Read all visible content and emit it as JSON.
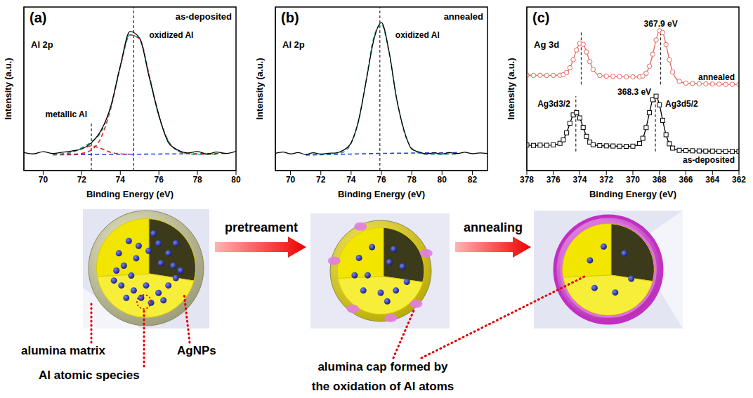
{
  "chart_data": [
    {
      "type": "line",
      "panel": "(a)",
      "title": "Al 2p",
      "subtitle": "as-deposited",
      "x_label": "Binding Energy (eV)",
      "y_label": "Intensity (a.u.)",
      "xlim": [
        69,
        80
      ],
      "xticks": [
        70,
        72,
        74,
        76,
        78,
        80
      ],
      "ylim": [
        0,
        100
      ],
      "tick_labels": "x",
      "x": [
        69,
        69.5,
        70,
        70.5,
        71,
        71.5,
        72,
        72.5,
        73,
        73.5,
        74,
        74.5,
        75,
        75.5,
        76,
        76.5,
        77,
        77.5,
        78,
        78.5,
        79,
        79.5,
        80
      ],
      "series": [
        {
          "color": "#2b3fd6",
          "line_style": "dashed",
          "values": [
            null,
            null,
            null,
            9.6,
            9.7,
            9.7,
            9.8,
            9.8,
            9.9,
            9.9,
            10,
            10,
            10,
            10.1,
            10.1,
            10.2,
            10.2,
            10.3,
            10.3,
            10.4,
            10.4,
            10.5,
            null
          ]
        },
        {
          "color": "#e8211d",
          "line_style": "dashed",
          "values": [
            null,
            null,
            null,
            10,
            10,
            10,
            10.5,
            12.6,
            20.1,
            37.7,
            63.4,
            83,
            80.5,
            58.2,
            33.3,
            18,
            12,
            10.3,
            10,
            10,
            10,
            null,
            null
          ]
        },
        {
          "color": "#e8211d",
          "line_style": "dashed",
          "values": [
            null,
            null,
            null,
            10,
            10.2,
            11.2,
            13.5,
            15,
            13.5,
            11.2,
            10.2,
            10,
            null,
            null,
            null,
            null,
            null,
            null,
            null,
            null,
            null,
            null,
            null
          ]
        },
        {
          "color": "#1f9c8c",
          "line_style": "dashed",
          "values": [
            null,
            null,
            null,
            10,
            10.2,
            11.2,
            14,
            17.6,
            23.6,
            38.9,
            63.6,
            83,
            80.5,
            58.2,
            33.3,
            18,
            12,
            10.3,
            10,
            10,
            10,
            null,
            null
          ]
        },
        {
          "color": "#000000",
          "line_style": "solid",
          "values": [
            11,
            10.2,
            11.5,
            10.4,
            11.2,
            12,
            13.2,
            17,
            24.5,
            39,
            64,
            85,
            81,
            57,
            34,
            17,
            12.5,
            10.8,
            11.6,
            10.1,
            11.3,
            10.5,
            11.8
          ]
        }
      ],
      "reference_lines": [
        {
          "x": 72.5,
          "label": "metallic Al"
        },
        {
          "x": 74.7,
          "label": "oxidized Al"
        }
      ]
    },
    {
      "type": "line",
      "panel": "(b)",
      "title": "Al 2p",
      "subtitle": "annealed",
      "x_label": "Binding Energy (eV)",
      "y_label": "Intensity (a.u.)",
      "xlim": [
        69,
        83
      ],
      "xticks": [
        70,
        72,
        74,
        76,
        78,
        80,
        82
      ],
      "ylim": [
        0,
        100
      ],
      "tick_labels": "x",
      "x": [
        69,
        69.5,
        70,
        70.5,
        71,
        71.5,
        72,
        72.5,
        73,
        73.5,
        74,
        74.5,
        75,
        75.5,
        76,
        76.5,
        77,
        77.5,
        78,
        78.5,
        79,
        79.5,
        80,
        80.5,
        81,
        81.5,
        82,
        82.5,
        83
      ],
      "series": [
        {
          "color": "#2b3fd6",
          "line_style": "dashed",
          "values": [
            null,
            null,
            null,
            null,
            9.5,
            9.6,
            9.7,
            9.8,
            9.9,
            10,
            10.1,
            10.2,
            10.3,
            10.4,
            10.5,
            10.5,
            10.6,
            10.6,
            10.7,
            10.7,
            10.8,
            10.8,
            10.9,
            10.9,
            11,
            null,
            null,
            null,
            null
          ]
        },
        {
          "color": "#1f9c8c",
          "line_style": "dashed",
          "values": [
            null,
            null,
            null,
            null,
            10,
            10,
            10,
            10,
            10.2,
            11.4,
            16.6,
            30.6,
            55.7,
            81.6,
            89.4,
            72.3,
            44.6,
            23.6,
            13.8,
            10.7,
            10,
            10,
            10,
            10,
            10,
            null,
            null,
            null,
            null
          ]
        },
        {
          "color": "#000000",
          "line_style": "solid",
          "values": [
            10.5,
            11.3,
            10.2,
            11,
            9.8,
            10.9,
            10.1,
            10.6,
            10.8,
            12.5,
            17,
            31,
            55,
            80,
            90.5,
            73,
            44,
            24.5,
            13.2,
            11.3,
            10.2,
            10.9,
            10.1,
            11,
            10.4,
            11.2,
            10.3,
            10.8,
            10.5
          ]
        }
      ],
      "reference_lines": [
        {
          "x": 75.9,
          "label": "oxidized Al"
        }
      ]
    },
    {
      "type": "line",
      "panel": "(c)",
      "title": "Ag 3d",
      "x_label": "Binding Energy (eV)",
      "y_label": "Intensity (a.u.)",
      "xlim": [
        378,
        362
      ],
      "xticks": [
        378,
        376,
        374,
        372,
        370,
        368,
        366,
        364,
        362
      ],
      "ylim": [
        0,
        110
      ],
      "tick_labels": "x",
      "x": [
        378,
        377.5,
        377,
        376.5,
        376,
        375.5,
        375.25,
        375,
        374.75,
        374.5,
        374.25,
        374,
        373.75,
        373.5,
        373.25,
        373,
        372.5,
        372,
        371.5,
        371,
        370.5,
        370,
        369.5,
        369.25,
        369,
        368.75,
        368.5,
        368.25,
        368,
        367.75,
        367.5,
        367.25,
        367,
        366.5,
        366,
        365.5,
        365,
        364.5,
        364,
        363.5,
        363,
        362.5,
        362
      ],
      "series": [
        {
          "name": "annealed",
          "color": "#e8675f",
          "marker": "circle",
          "line_style": "solid",
          "values": [
            64.2,
            64,
            64.1,
            63.9,
            64,
            64.1,
            64.5,
            65.9,
            69.1,
            74.6,
            81.1,
            85.5,
            84.9,
            79.8,
            73.3,
            68.1,
            64,
            63.5,
            63.4,
            63.2,
            63,
            63,
            63,
            63.6,
            65.5,
            70.2,
            78.3,
            87.8,
            94,
            92.8,
            84.8,
            74.5,
            66.3,
            60,
            58.8,
            58.6,
            58.4,
            58.3,
            58.2,
            58.1,
            58,
            58,
            57.9
          ]
        },
        {
          "name": "as-deposited",
          "color": "#000000",
          "marker": "square",
          "line_style": "solid",
          "values": [
            17.2,
            16.9,
            17.1,
            17,
            17.3,
            18.3,
            20.7,
            25.4,
            31.8,
            37.4,
            39,
            35.4,
            29,
            23,
            19.2,
            17.4,
            16.8,
            16.6,
            16.5,
            16.4,
            16.3,
            16.4,
            18.2,
            21.7,
            28.9,
            38.9,
            47.7,
            50,
            44.2,
            33.8,
            24.1,
            18,
            15.1,
            13.6,
            13.4,
            13.3,
            13.2,
            13.1,
            13.1,
            13,
            13,
            12.9,
            12.9
          ]
        }
      ],
      "reference_lines": [
        {
          "x": 367.9,
          "label": "367.9 eV",
          "series": 0
        },
        {
          "x": 373.9,
          "series": 0
        },
        {
          "x": 368.3,
          "label": "368.3 eV",
          "series": 1
        },
        {
          "x": 374.3,
          "series": 1
        }
      ],
      "annotations": [
        "Ag3d3/2",
        "Ag3d5/2"
      ]
    }
  ],
  "diagram": {
    "arrows": [
      "pretreament",
      "annealing"
    ],
    "labels": [
      "alumina matrix",
      "AgNPs",
      "Al atomic species"
    ],
    "callout": [
      "alumina cap formed by",
      "the oxidation of Al atoms"
    ]
  }
}
